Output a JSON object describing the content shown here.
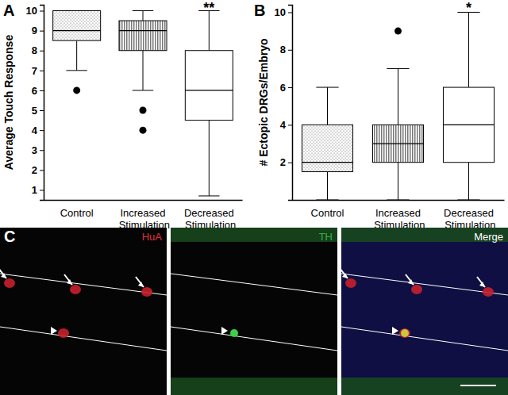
{
  "chart_data": [
    {
      "type": "box",
      "panel": "A",
      "y_label": "Average Touch Response",
      "categories": [
        "Control",
        "Increased Stimulation",
        "Decreased Stimulation"
      ],
      "ylim": [
        0.5,
        10.3
      ],
      "yticks": [
        1,
        2,
        3,
        4,
        5,
        6,
        7,
        8,
        9,
        10
      ],
      "boxes": [
        {
          "min": 7,
          "q1": 8.5,
          "median": 9,
          "q3": 10,
          "max": 10,
          "outliers": [
            6
          ]
        },
        {
          "min": 6,
          "q1": 8,
          "median": 9,
          "q3": 9.5,
          "max": 10,
          "outliers": [
            5,
            4
          ]
        },
        {
          "min": 0.7,
          "q1": 4.5,
          "median": 6,
          "q3": 8,
          "max": 10,
          "outliers": []
        }
      ],
      "annotations": [
        {
          "category": "Decreased Stimulation",
          "text": "**"
        }
      ]
    },
    {
      "type": "box",
      "panel": "B",
      "y_label": "# Ectopic DRGs/Embryo",
      "categories": [
        "Control",
        "Increased Stimulation",
        "Decreased Stimulation"
      ],
      "ylim": [
        0,
        10.4
      ],
      "yticks": [
        2,
        4,
        6,
        8,
        10
      ],
      "boxes": [
        {
          "min": 0,
          "q1": 1.5,
          "median": 2,
          "q3": 4,
          "max": 6,
          "outliers": []
        },
        {
          "min": 0,
          "q1": 2,
          "median": 3,
          "q3": 4,
          "max": 7,
          "outliers": [
            9
          ]
        },
        {
          "min": 0,
          "q1": 2,
          "median": 4,
          "q3": 6,
          "max": 10,
          "outliers": []
        }
      ],
      "annotations": [
        {
          "category": "Decreased Stimulation",
          "text": "*"
        }
      ]
    }
  ],
  "image_panel": {
    "label": "C",
    "channels": [
      "HuA",
      "TH",
      "Merge"
    ]
  }
}
